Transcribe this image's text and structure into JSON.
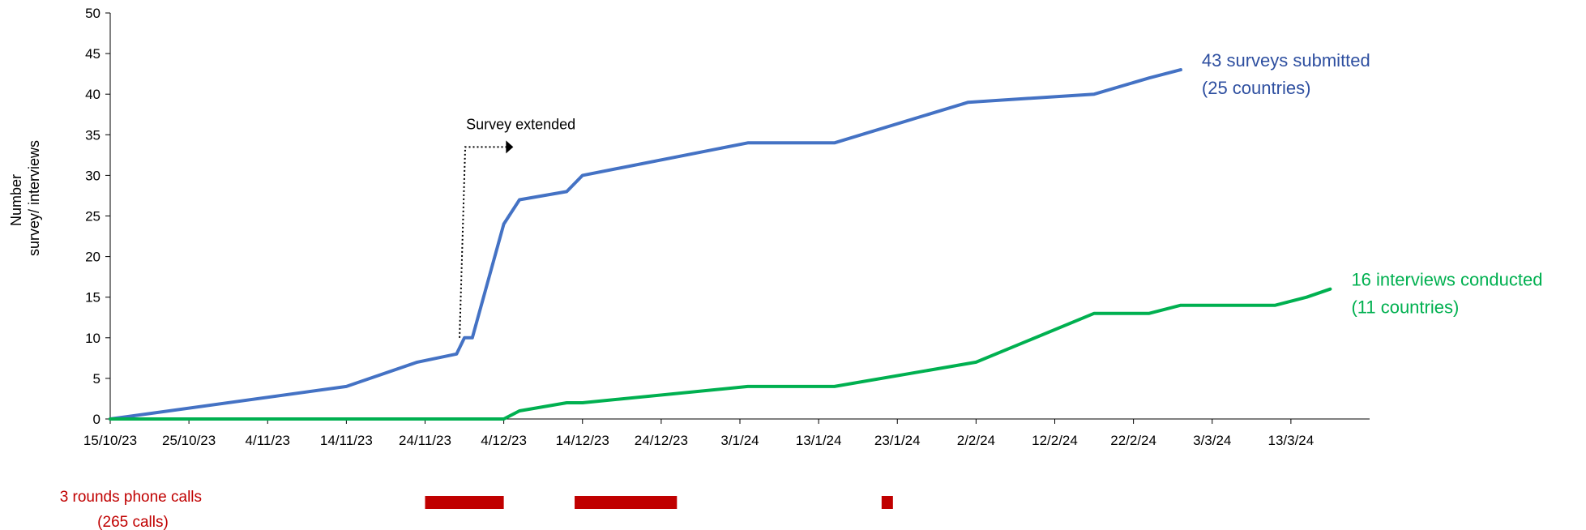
{
  "chart_data": {
    "type": "line",
    "xlabel": "",
    "ylabel_line1": "Number",
    "ylabel_line2": "survey/ interviews",
    "ylim": [
      0,
      50
    ],
    "yticks": [
      0,
      5,
      10,
      15,
      20,
      25,
      30,
      35,
      40,
      45,
      50
    ],
    "xlim": [
      "2023-10-15",
      "2024-03-23"
    ],
    "xtick_dates": [
      "2023-10-15",
      "2023-10-25",
      "2023-11-04",
      "2023-11-14",
      "2023-11-24",
      "2023-12-04",
      "2023-12-14",
      "2023-12-24",
      "2024-01-03",
      "2024-01-13",
      "2024-01-23",
      "2024-02-02",
      "2024-02-12",
      "2024-02-22",
      "2024-03-03",
      "2024-03-13"
    ],
    "xtick_labels": [
      "15/10/23",
      "25/10/23",
      "4/11/23",
      "14/11/23",
      "24/11/23",
      "4/12/23",
      "14/12/23",
      "24/12/23",
      "3/1/24",
      "13/1/24",
      "23/1/24",
      "2/2/24",
      "12/2/24",
      "22/2/24",
      "3/3/24",
      "13/3/24"
    ],
    "grid": false,
    "series": [
      {
        "color": "#4472C4",
        "points": [
          {
            "x": "2023-10-15",
            "y": 0
          },
          {
            "x": "2023-11-14",
            "y": 4
          },
          {
            "x": "2023-11-23",
            "y": 7
          },
          {
            "x": "2023-11-28",
            "y": 8
          },
          {
            "x": "2023-11-29",
            "y": 10
          },
          {
            "x": "2023-11-30",
            "y": 10
          },
          {
            "x": "2023-12-04",
            "y": 24
          },
          {
            "x": "2023-12-06",
            "y": 27
          },
          {
            "x": "2023-12-12",
            "y": 28
          },
          {
            "x": "2023-12-14",
            "y": 30
          },
          {
            "x": "2024-01-04",
            "y": 34
          },
          {
            "x": "2024-01-15",
            "y": 34
          },
          {
            "x": "2024-02-01",
            "y": 39
          },
          {
            "x": "2024-02-17",
            "y": 40
          },
          {
            "x": "2024-02-24",
            "y": 42
          },
          {
            "x": "2024-02-28",
            "y": 43
          }
        ]
      },
      {
        "color": "#00B050",
        "points": [
          {
            "x": "2023-10-15",
            "y": 0
          },
          {
            "x": "2023-12-04",
            "y": 0
          },
          {
            "x": "2023-12-06",
            "y": 1
          },
          {
            "x": "2023-12-12",
            "y": 2
          },
          {
            "x": "2023-12-14",
            "y": 2
          },
          {
            "x": "2024-01-04",
            "y": 4
          },
          {
            "x": "2024-01-15",
            "y": 4
          },
          {
            "x": "2024-02-02",
            "y": 7
          },
          {
            "x": "2024-02-17",
            "y": 13
          },
          {
            "x": "2024-02-24",
            "y": 13
          },
          {
            "x": "2024-02-28",
            "y": 14
          },
          {
            "x": "2024-03-11",
            "y": 14
          },
          {
            "x": "2024-03-15",
            "y": 15
          },
          {
            "x": "2024-03-18",
            "y": 16
          }
        ]
      }
    ],
    "end_labels": [
      {
        "line1": "43 surveys submitted",
        "line2": "(25 countries)",
        "color": "#2E4FA0"
      },
      {
        "line1": "16 interviews conducted",
        "line2": "(11 countries)",
        "color": "#00B050"
      }
    ],
    "annotation": {
      "text": "Survey extended",
      "x": "2023-11-29",
      "y_from": 10,
      "y_to": 33.5,
      "x_arrow_end": "2023-12-05"
    },
    "phone_calls": {
      "label_line1": "3 rounds phone calls",
      "label_line2": "(265 calls)",
      "color": "#C00000",
      "rounds": [
        {
          "start": "2023-11-24",
          "end": "2023-12-04"
        },
        {
          "start": "2023-12-13",
          "end": "2023-12-26"
        },
        {
          "start": "2024-01-21",
          "end": "2024-01-22"
        }
      ]
    }
  }
}
